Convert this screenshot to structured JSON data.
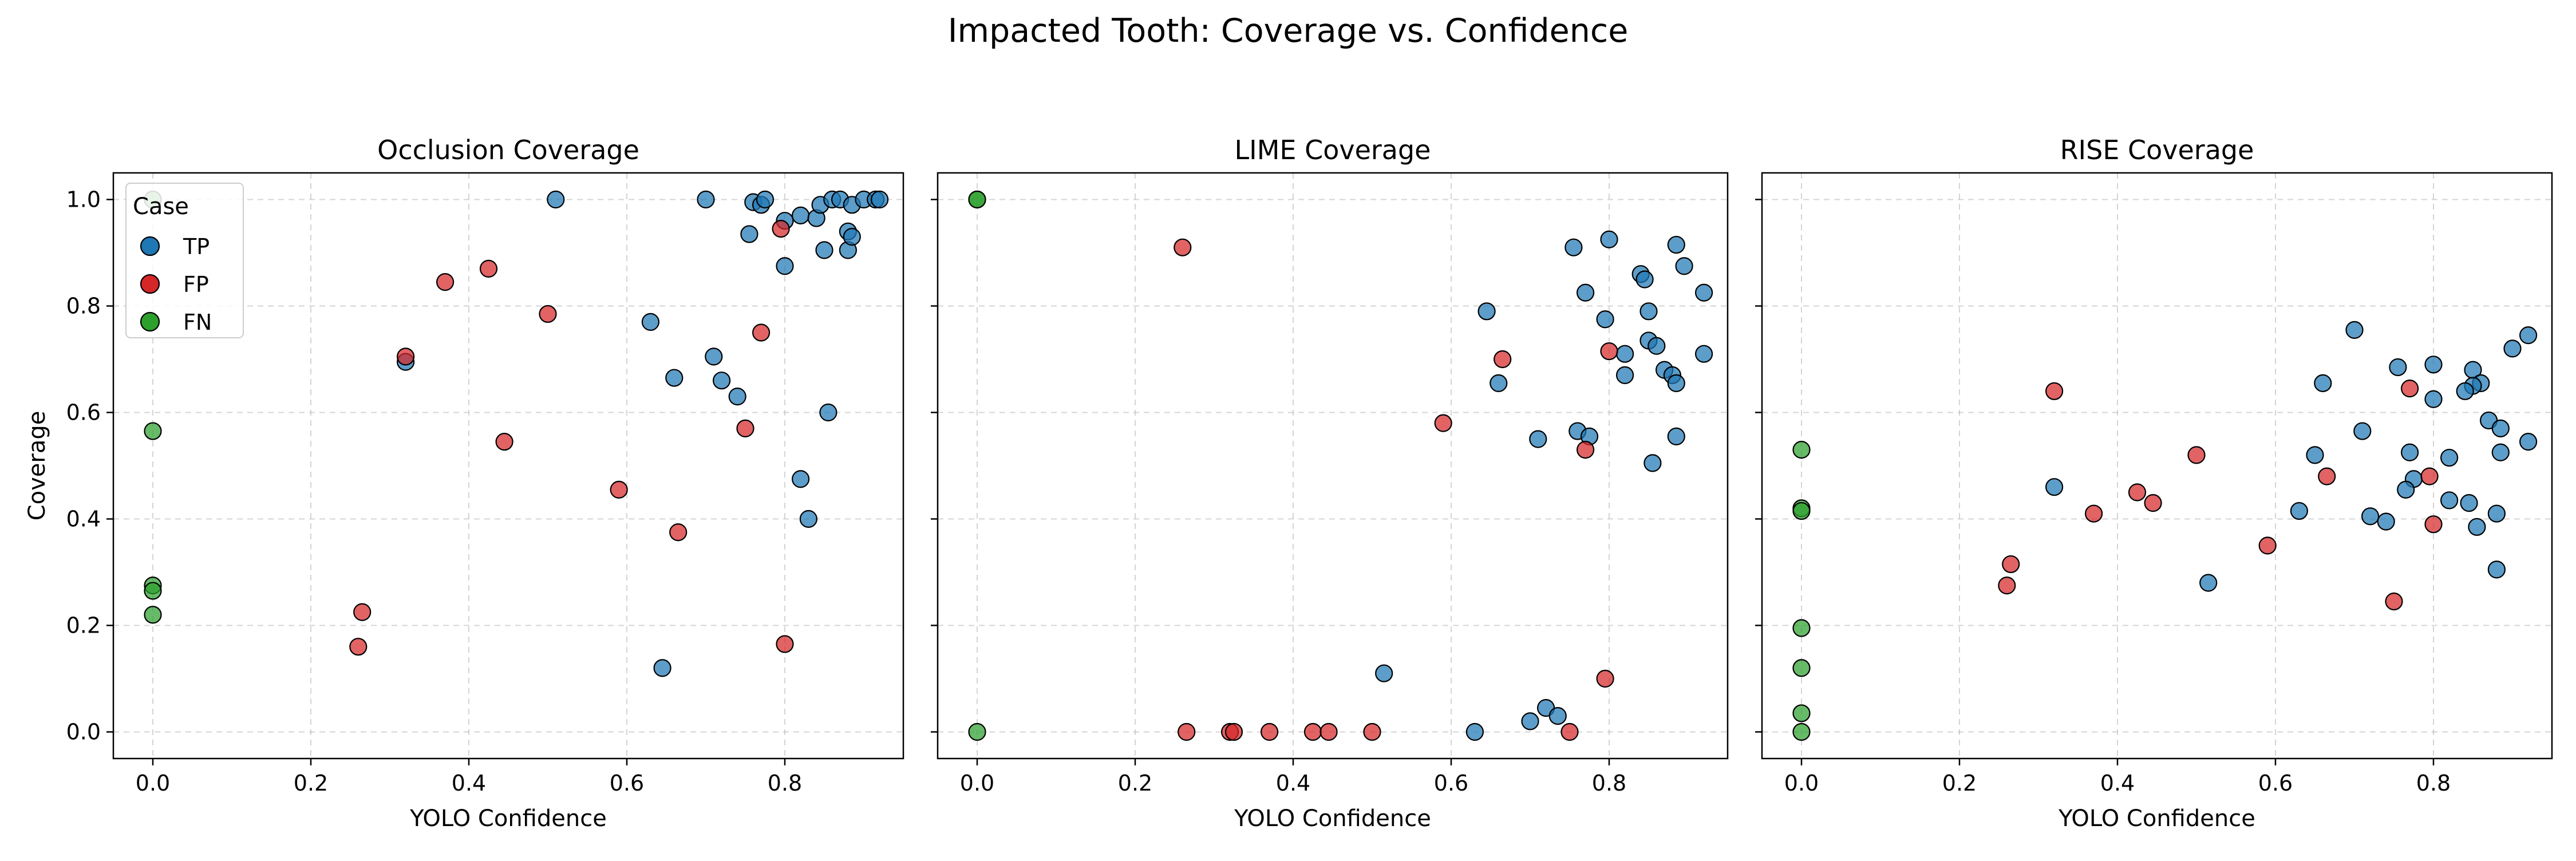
{
  "suptitle": "Impacted Tooth: Coverage vs. Confidence",
  "colors": {
    "TP": "#1f77b4",
    "FP": "#d62728",
    "FN": "#2ca02c"
  },
  "chart_data": [
    {
      "type": "scatter",
      "title": "Occlusion Coverage",
      "xlabel": "YOLO Confidence",
      "ylabel": "Coverage",
      "xlim": [
        -0.05,
        0.95
      ],
      "ylim": [
        -0.05,
        1.05
      ],
      "xticks": [
        "0.0",
        "0.2",
        "0.4",
        "0.6",
        "0.8"
      ],
      "yticks": [
        "0.0",
        "0.2",
        "0.4",
        "0.6",
        "0.8",
        "1.0"
      ],
      "grid": true,
      "legend": {
        "title": "Case",
        "placement": "top-left",
        "entries": [
          "TP",
          "FP",
          "FN"
        ]
      },
      "series": [
        {
          "name": "TP",
          "points": [
            [
              0.51,
              1.0
            ],
            [
              0.7,
              1.0
            ],
            [
              0.755,
              0.935
            ],
            [
              0.76,
              0.995
            ],
            [
              0.77,
              0.99
            ],
            [
              0.775,
              1.0
            ],
            [
              0.8,
              0.96
            ],
            [
              0.8,
              0.875
            ],
            [
              0.82,
              0.97
            ],
            [
              0.84,
              0.965
            ],
            [
              0.845,
              0.99
            ],
            [
              0.85,
              0.905
            ],
            [
              0.86,
              1.0
            ],
            [
              0.87,
              1.0
            ],
            [
              0.88,
              0.94
            ],
            [
              0.88,
              0.905
            ],
            [
              0.885,
              0.93
            ],
            [
              0.885,
              0.99
            ],
            [
              0.9,
              1.0
            ],
            [
              0.915,
              1.0
            ],
            [
              0.92,
              1.0
            ],
            [
              0.32,
              0.695
            ],
            [
              0.63,
              0.77
            ],
            [
              0.66,
              0.665
            ],
            [
              0.71,
              0.705
            ],
            [
              0.72,
              0.66
            ],
            [
              0.74,
              0.63
            ],
            [
              0.855,
              0.6
            ],
            [
              0.82,
              0.475
            ],
            [
              0.83,
              0.4
            ],
            [
              0.645,
              0.12
            ]
          ]
        },
        {
          "name": "FP",
          "points": [
            [
              0.795,
              0.945
            ],
            [
              0.425,
              0.87
            ],
            [
              0.37,
              0.845
            ],
            [
              0.5,
              0.785
            ],
            [
              0.77,
              0.75
            ],
            [
              0.32,
              0.705
            ],
            [
              0.445,
              0.545
            ],
            [
              0.75,
              0.57
            ],
            [
              0.59,
              0.455
            ],
            [
              0.665,
              0.375
            ],
            [
              0.265,
              0.225
            ],
            [
              0.26,
              0.16
            ],
            [
              0.8,
              0.165
            ]
          ]
        },
        {
          "name": "FN",
          "points": [
            [
              0.0,
              1.0
            ],
            [
              0.0,
              0.565
            ],
            [
              0.0,
              0.275
            ],
            [
              0.0,
              0.265
            ],
            [
              0.0,
              0.22
            ]
          ]
        }
      ]
    },
    {
      "type": "scatter",
      "title": "LIME Coverage",
      "xlabel": "YOLO Confidence",
      "ylabel": "",
      "xlim": [
        -0.05,
        0.95
      ],
      "ylim": [
        -0.05,
        1.05
      ],
      "xticks": [
        "0.0",
        "0.2",
        "0.4",
        "0.6",
        "0.8"
      ],
      "yticks": [],
      "grid": true,
      "series": [
        {
          "name": "TP",
          "points": [
            [
              0.8,
              0.925
            ],
            [
              0.755,
              0.91
            ],
            [
              0.885,
              0.915
            ],
            [
              0.895,
              0.875
            ],
            [
              0.84,
              0.86
            ],
            [
              0.845,
              0.85
            ],
            [
              0.92,
              0.825
            ],
            [
              0.77,
              0.825
            ],
            [
              0.645,
              0.79
            ],
            [
              0.795,
              0.775
            ],
            [
              0.85,
              0.79
            ],
            [
              0.85,
              0.735
            ],
            [
              0.86,
              0.725
            ],
            [
              0.82,
              0.71
            ],
            [
              0.92,
              0.71
            ],
            [
              0.87,
              0.68
            ],
            [
              0.88,
              0.67
            ],
            [
              0.82,
              0.67
            ],
            [
              0.885,
              0.655
            ],
            [
              0.66,
              0.655
            ],
            [
              0.76,
              0.565
            ],
            [
              0.775,
              0.555
            ],
            [
              0.885,
              0.555
            ],
            [
              0.71,
              0.55
            ],
            [
              0.855,
              0.505
            ],
            [
              0.515,
              0.11
            ],
            [
              0.72,
              0.045
            ],
            [
              0.735,
              0.03
            ],
            [
              0.7,
              0.02
            ],
            [
              0.63,
              0.0
            ]
          ]
        },
        {
          "name": "FP",
          "points": [
            [
              0.26,
              0.91
            ],
            [
              0.665,
              0.7
            ],
            [
              0.8,
              0.715
            ],
            [
              0.59,
              0.58
            ],
            [
              0.77,
              0.53
            ],
            [
              0.795,
              0.1
            ],
            [
              0.265,
              0.0
            ],
            [
              0.32,
              0.0
            ],
            [
              0.325,
              0.0
            ],
            [
              0.37,
              0.0
            ],
            [
              0.425,
              0.0
            ],
            [
              0.445,
              0.0
            ],
            [
              0.5,
              0.0
            ],
            [
              0.75,
              0.0
            ]
          ]
        },
        {
          "name": "FN",
          "points": [
            [
              0.0,
              1.0
            ],
            [
              0.0,
              1.0
            ],
            [
              0.0,
              0.0
            ]
          ]
        }
      ]
    },
    {
      "type": "scatter",
      "title": "RISE Coverage",
      "xlabel": "YOLO Confidence",
      "ylabel": "",
      "xlim": [
        -0.05,
        0.95
      ],
      "ylim": [
        -0.05,
        1.05
      ],
      "xticks": [
        "0.0",
        "0.2",
        "0.4",
        "0.6",
        "0.8"
      ],
      "yticks": [],
      "grid": true,
      "series": [
        {
          "name": "TP",
          "points": [
            [
              0.7,
              0.755
            ],
            [
              0.92,
              0.745
            ],
            [
              0.9,
              0.72
            ],
            [
              0.8,
              0.69
            ],
            [
              0.755,
              0.685
            ],
            [
              0.85,
              0.68
            ],
            [
              0.86,
              0.655
            ],
            [
              0.85,
              0.65
            ],
            [
              0.66,
              0.655
            ],
            [
              0.84,
              0.64
            ],
            [
              0.8,
              0.625
            ],
            [
              0.87,
              0.585
            ],
            [
              0.885,
              0.57
            ],
            [
              0.71,
              0.565
            ],
            [
              0.92,
              0.545
            ],
            [
              0.885,
              0.525
            ],
            [
              0.77,
              0.525
            ],
            [
              0.65,
              0.52
            ],
            [
              0.82,
              0.515
            ],
            [
              0.775,
              0.475
            ],
            [
              0.32,
              0.46
            ],
            [
              0.765,
              0.455
            ],
            [
              0.82,
              0.435
            ],
            [
              0.845,
              0.43
            ],
            [
              0.63,
              0.415
            ],
            [
              0.72,
              0.405
            ],
            [
              0.88,
              0.41
            ],
            [
              0.74,
              0.395
            ],
            [
              0.855,
              0.385
            ],
            [
              0.515,
              0.28
            ],
            [
              0.88,
              0.305
            ]
          ]
        },
        {
          "name": "FP",
          "points": [
            [
              0.32,
              0.64
            ],
            [
              0.77,
              0.645
            ],
            [
              0.5,
              0.52
            ],
            [
              0.795,
              0.48
            ],
            [
              0.665,
              0.48
            ],
            [
              0.425,
              0.45
            ],
            [
              0.445,
              0.43
            ],
            [
              0.37,
              0.41
            ],
            [
              0.8,
              0.39
            ],
            [
              0.59,
              0.35
            ],
            [
              0.265,
              0.315
            ],
            [
              0.26,
              0.275
            ],
            [
              0.75,
              0.245
            ]
          ]
        },
        {
          "name": "FN",
          "points": [
            [
              0.0,
              0.53
            ],
            [
              0.0,
              0.42
            ],
            [
              0.0,
              0.415
            ],
            [
              0.0,
              0.195
            ],
            [
              0.0,
              0.12
            ],
            [
              0.0,
              0.035
            ],
            [
              0.0,
              0.0
            ]
          ]
        }
      ]
    }
  ]
}
